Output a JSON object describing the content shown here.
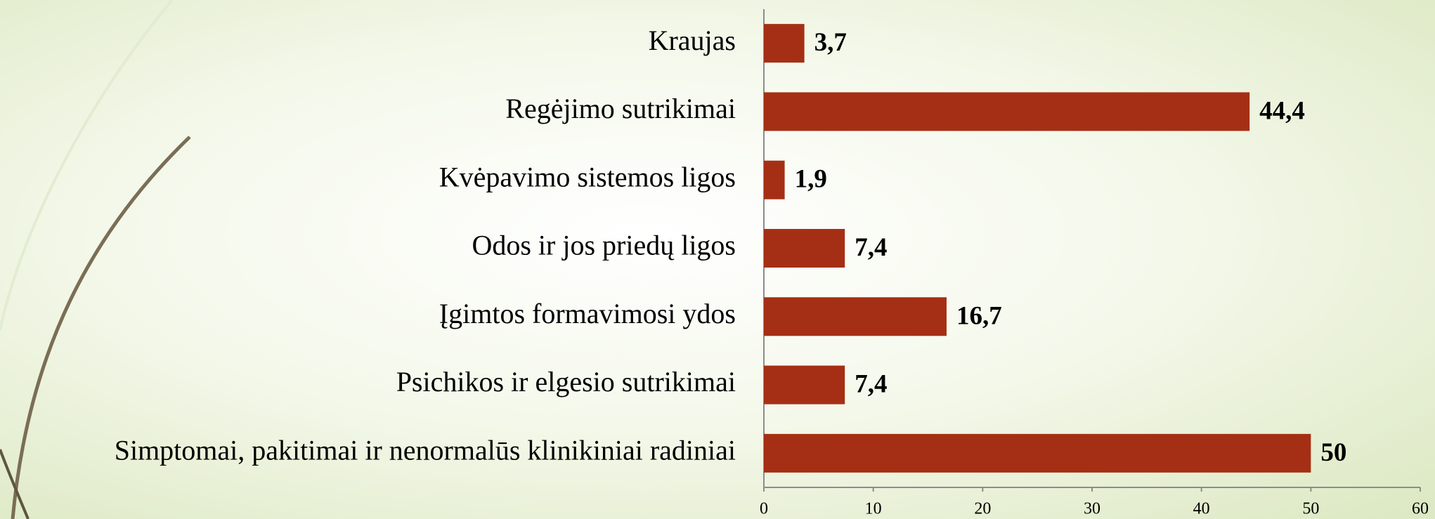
{
  "chart_data": {
    "type": "barh",
    "categories": [
      "Kraujas",
      "Regėjimo sutrikimai",
      "Kvėpavimo sistemos ligos",
      "Odos ir jos priedų ligos",
      "Įgimtos formavimosi ydos",
      "Psichikos ir elgesio sutrikimai",
      "Simptomai, pakitimai ir nenormalūs klinikiniai radiniai"
    ],
    "values": [
      3.7,
      44.4,
      1.9,
      7.4,
      16.7,
      7.4,
      50
    ],
    "value_labels": [
      "3,7",
      "44,4",
      "1,9",
      "7,4",
      "16,7",
      "7,4",
      "50"
    ],
    "color": "#a52f14",
    "xlim": [
      0,
      60
    ],
    "xticks": [
      0,
      10,
      20,
      30,
      40,
      50,
      60
    ],
    "grid": false
  }
}
